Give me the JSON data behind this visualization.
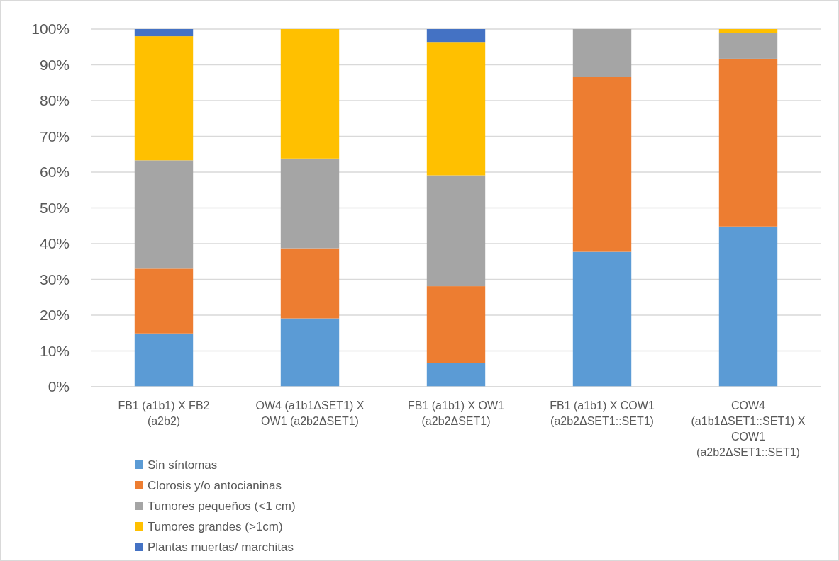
{
  "chart_data": {
    "type": "bar",
    "stacked": true,
    "categories": [
      "FB1 (a1b1) X FB2 (a2b2)",
      "OW4 (a1b1ΔSET1) X OW1 (a2b2ΔSET1)",
      "FB1 (a1b1) X OW1 (a2b2ΔSET1)",
      "FB1  (a1b1) X COW1 (a2b2ΔSET1::SET1)",
      "COW4 (a1b1ΔSET1::SET1) X COW1 (a2b2ΔSET1::SET1)"
    ],
    "series": [
      {
        "name": "Sin síntomas",
        "color": "#5b9bd5",
        "values": [
          14.9,
          19.1,
          6.7,
          37.7,
          44.8
        ]
      },
      {
        "name": "Clorosis y/o antocianinas",
        "color": "#ed7d31",
        "values": [
          18.1,
          19.6,
          21.4,
          48.9,
          46.9
        ]
      },
      {
        "name": "Tumores pequeños (<1 cm)",
        "color": "#a5a5a5",
        "values": [
          30.3,
          25.1,
          31.0,
          13.4,
          7.2
        ]
      },
      {
        "name": "Tumores grandes (>1cm)",
        "color": "#ffc000",
        "values": [
          34.7,
          36.2,
          37.1,
          0,
          1.1
        ]
      },
      {
        "name": "Plantas muertas/ marchitas",
        "color": "#4472c4",
        "values": [
          2.0,
          0,
          3.8,
          0,
          0
        ]
      }
    ],
    "ylim": [
      0,
      100
    ],
    "yticks": [
      {
        "value": 0,
        "label": "0%"
      },
      {
        "value": 10,
        "label": "10%"
      },
      {
        "value": 20,
        "label": "20%"
      },
      {
        "value": 30,
        "label": "30%"
      },
      {
        "value": 40,
        "label": "40%"
      },
      {
        "value": 50,
        "label": "50%"
      },
      {
        "value": 60,
        "label": "60%"
      },
      {
        "value": 70,
        "label": "70%"
      },
      {
        "value": 80,
        "label": "80%"
      },
      {
        "value": 90,
        "label": "90%"
      },
      {
        "value": 100,
        "label": "100%"
      }
    ],
    "grid": "y",
    "legend": "bottom left"
  }
}
